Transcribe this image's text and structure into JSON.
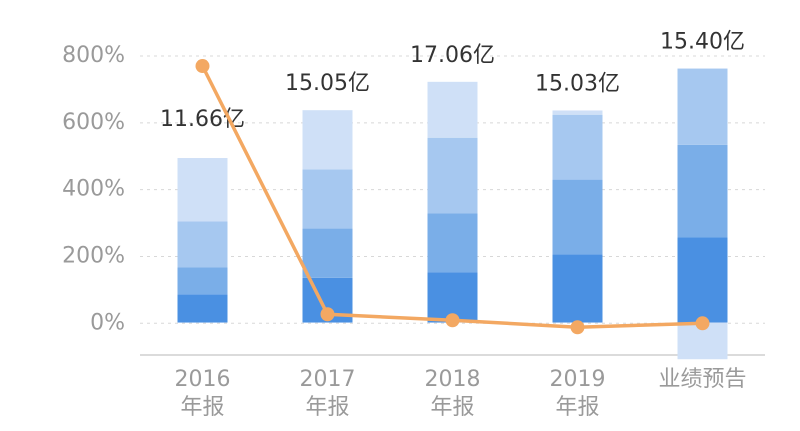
{
  "chart_data": {
    "type": "bar-line",
    "categories": [
      [
        "2016",
        "年报"
      ],
      [
        "2017",
        "年报"
      ],
      [
        "2018",
        "年报"
      ],
      [
        "2019",
        "年报"
      ],
      [
        "业绩预告"
      ]
    ],
    "ylim": [
      -95,
      800
    ],
    "yticks": [
      {
        "value": 0,
        "label": "0%"
      },
      {
        "value": 200,
        "label": "200%"
      },
      {
        "value": 400,
        "label": "400%"
      },
      {
        "value": 600,
        "label": "600%"
      },
      {
        "value": 800,
        "label": "800%"
      }
    ],
    "y2lim": [
      -2.3,
      18.89
    ],
    "grid": true,
    "series": [
      {
        "color": "#4a90e2",
        "axis": "y2",
        "values": [
          2.0,
          3.17,
          3.55,
          4.83,
          6.05
        ]
      },
      {
        "color": "#7aaee8",
        "axis": "y2",
        "values": [
          1.9,
          3.49,
          4.2,
          5.3,
          6.55
        ]
      },
      {
        "color": "#a6c8f0",
        "axis": "y2",
        "values": [
          3.26,
          4.2,
          5.35,
          4.6,
          5.4
        ]
      },
      {
        "color": "#cfe0f7",
        "axis": "y2",
        "values": [
          4.5,
          4.19,
          3.96,
          0.3,
          -2.6
        ]
      },
      {
        "type": "line",
        "color": "#f3a862",
        "values": [
          770,
          27,
          9,
          -12,
          0
        ]
      }
    ],
    "totals": {
      "values": [
        11.66,
        15.05,
        17.06,
        15.03,
        15.4
      ],
      "value_labels": [
        "11.66亿",
        "15.05亿",
        "17.06亿",
        "15.03亿",
        "15.40亿"
      ]
    }
  }
}
